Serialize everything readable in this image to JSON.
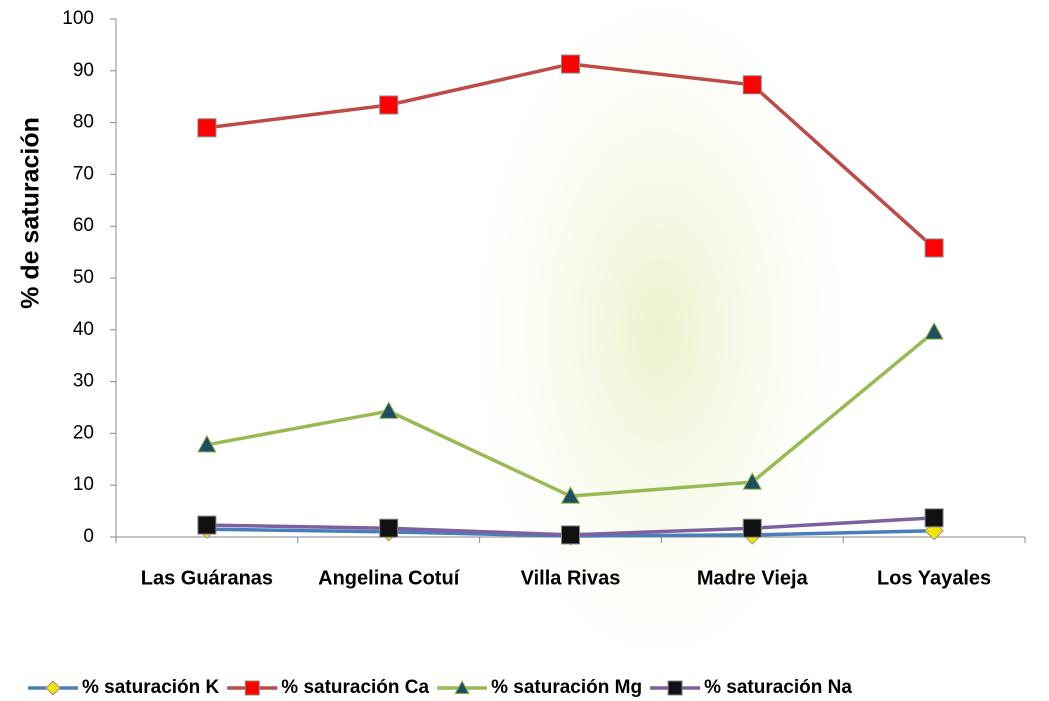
{
  "chart_data": {
    "type": "line",
    "y_label": "% de saturación",
    "categories": [
      "Las Guáranas",
      "Angelina Cotuí",
      "Villa Rivas",
      "Madre Vieja",
      "Los Yayales"
    ],
    "series": [
      {
        "name": "% saturación K",
        "color": "#4a7ebb",
        "marker": "diamond",
        "marker_color": "#f2e600",
        "values": [
          1.5,
          1.0,
          0.2,
          0.4,
          1.2
        ]
      },
      {
        "name": "% saturación Ca",
        "color": "#be4b48",
        "marker": "square",
        "marker_color": "#ff0000",
        "values": [
          79.0,
          83.4,
          91.3,
          87.3,
          55.8
        ]
      },
      {
        "name": "% saturación Mg",
        "color": "#98b954",
        "marker": "triangle",
        "marker_color": "#1f4e5f",
        "values": [
          17.8,
          24.3,
          7.9,
          10.6,
          39.6
        ]
      },
      {
        "name": "% saturación Na",
        "color": "#7d60a0",
        "marker": "square",
        "marker_color": "#111111",
        "values": [
          2.3,
          1.7,
          0.4,
          1.7,
          3.7
        ]
      }
    ],
    "ylim": [
      0,
      100
    ],
    "yticks": [
      0,
      10,
      20,
      30,
      40,
      50,
      60,
      70,
      80,
      90,
      100
    ],
    "grid": false,
    "legend": "bottom"
  }
}
